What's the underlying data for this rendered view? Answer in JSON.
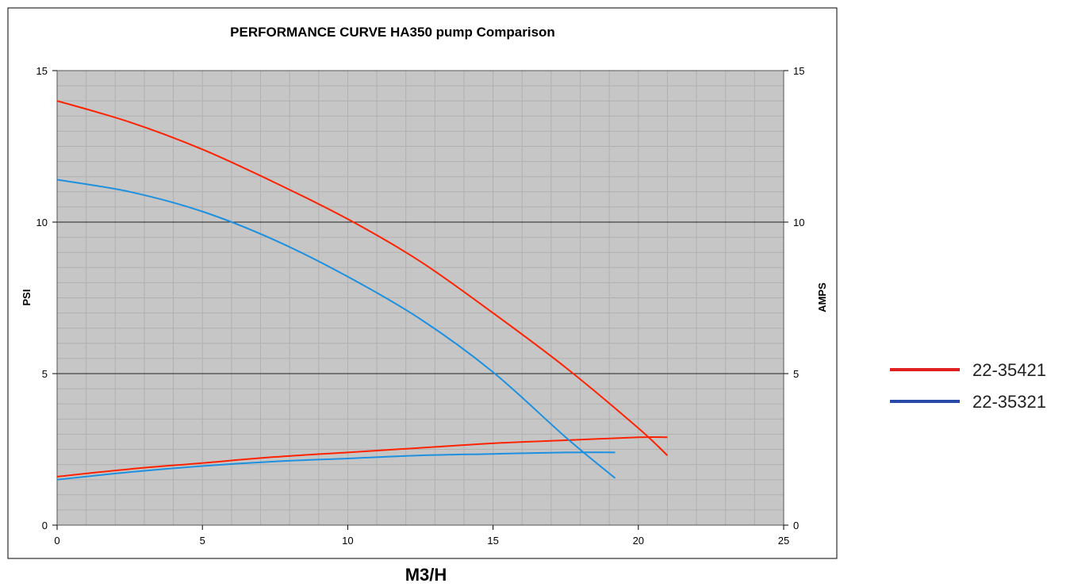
{
  "chart_data": {
    "type": "line",
    "title": "PERFORMANCE CURVE HA350 pump Comparison",
    "xlabel": "M3/H",
    "ylabel": "PSI",
    "y2label": "AMPS",
    "xlim": [
      0,
      25
    ],
    "ylim": [
      0,
      15
    ],
    "y2lim": [
      0,
      15
    ],
    "x_ticks": [
      "0",
      "5",
      "10",
      "15",
      "20",
      "25"
    ],
    "y_ticks": [
      "0",
      "5",
      "10",
      "15"
    ],
    "y2_ticks": [
      "0",
      "5",
      "10",
      "15"
    ],
    "grid": true,
    "legend_position": "right",
    "series": [
      {
        "name": "22-35421",
        "color": "#ff2200",
        "legend_color": "#e02020",
        "curves": [
          {
            "x": [
              0,
              2.5,
              5,
              7.5,
              10,
              12.5,
              15,
              17.5,
              20,
              21
            ],
            "y": [
              14.0,
              13.3,
              12.4,
              11.3,
              10.1,
              8.7,
              7.0,
              5.2,
              3.2,
              2.3
            ]
          },
          {
            "x": [
              0,
              2.5,
              5,
              7.5,
              10,
              12.5,
              15,
              17.5,
              20,
              21
            ],
            "y": [
              1.6,
              1.85,
              2.05,
              2.25,
              2.4,
              2.55,
              2.7,
              2.8,
              2.9,
              2.9
            ]
          }
        ]
      },
      {
        "name": "22-35321",
        "color": "#1e90e0",
        "legend_color": "#2a4aa8",
        "curves": [
          {
            "x": [
              0,
              2.5,
              5,
              7.5,
              10,
              12.5,
              15,
              17.5,
              19.2
            ],
            "y": [
              11.4,
              11.0,
              10.35,
              9.4,
              8.2,
              6.8,
              5.05,
              2.9,
              1.55
            ]
          },
          {
            "x": [
              0,
              2.5,
              5,
              7.5,
              10,
              12.5,
              15,
              17.5,
              19.2
            ],
            "y": [
              1.5,
              1.75,
              1.95,
              2.1,
              2.2,
              2.3,
              2.35,
              2.4,
              2.4
            ]
          }
        ]
      }
    ]
  }
}
